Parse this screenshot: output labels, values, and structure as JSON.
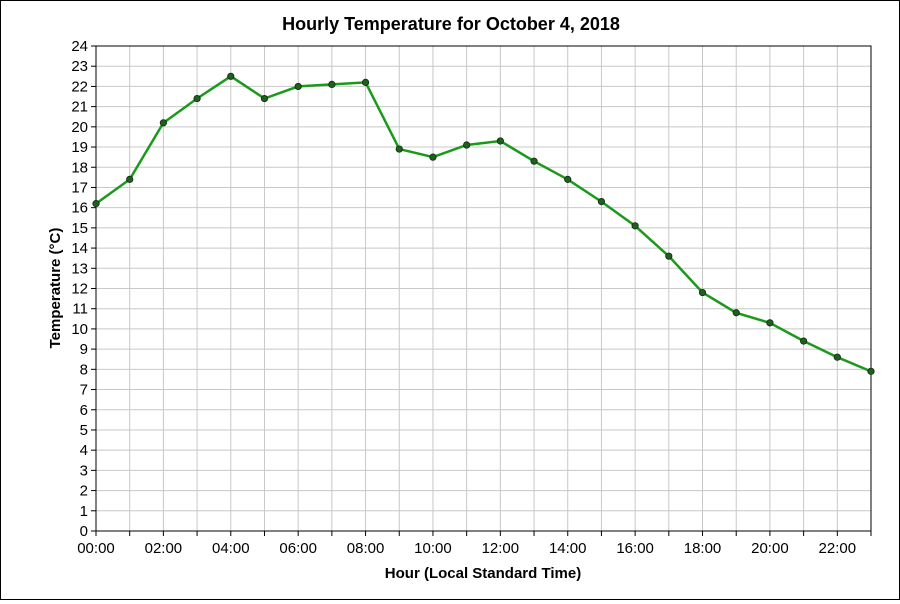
{
  "chart_data": {
    "type": "line",
    "title": "Hourly Temperature for October 4, 2018",
    "xlabel": "Hour (Local Standard Time)",
    "ylabel": "Temperature (°C)",
    "ylim": [
      0,
      24
    ],
    "xlim": [
      0,
      23
    ],
    "grid": true,
    "legend": "none",
    "x_tick_labels": [
      "00:00",
      "02:00",
      "04:00",
      "06:00",
      "08:00",
      "10:00",
      "12:00",
      "14:00",
      "16:00",
      "18:00",
      "20:00",
      "22:00"
    ],
    "y_ticks": [
      0,
      1,
      2,
      3,
      4,
      5,
      6,
      7,
      8,
      9,
      10,
      11,
      12,
      13,
      14,
      15,
      16,
      17,
      18,
      19,
      20,
      21,
      22,
      23,
      24
    ],
    "series": [
      {
        "color": "#1a9a1a",
        "marker_color": "#1f5f1f",
        "x": [
          0,
          1,
          2,
          3,
          4,
          5,
          6,
          7,
          8,
          9,
          10,
          11,
          12,
          13,
          14,
          15,
          16,
          17,
          18,
          19,
          20,
          21,
          22,
          23
        ],
        "values": [
          16.2,
          17.4,
          20.2,
          21.4,
          22.5,
          21.4,
          22.0,
          22.1,
          22.2,
          18.9,
          18.5,
          19.1,
          19.3,
          18.3,
          17.4,
          16.3,
          15.1,
          13.6,
          11.8,
          10.8,
          10.3,
          9.4,
          8.6,
          7.9
        ]
      }
    ]
  }
}
